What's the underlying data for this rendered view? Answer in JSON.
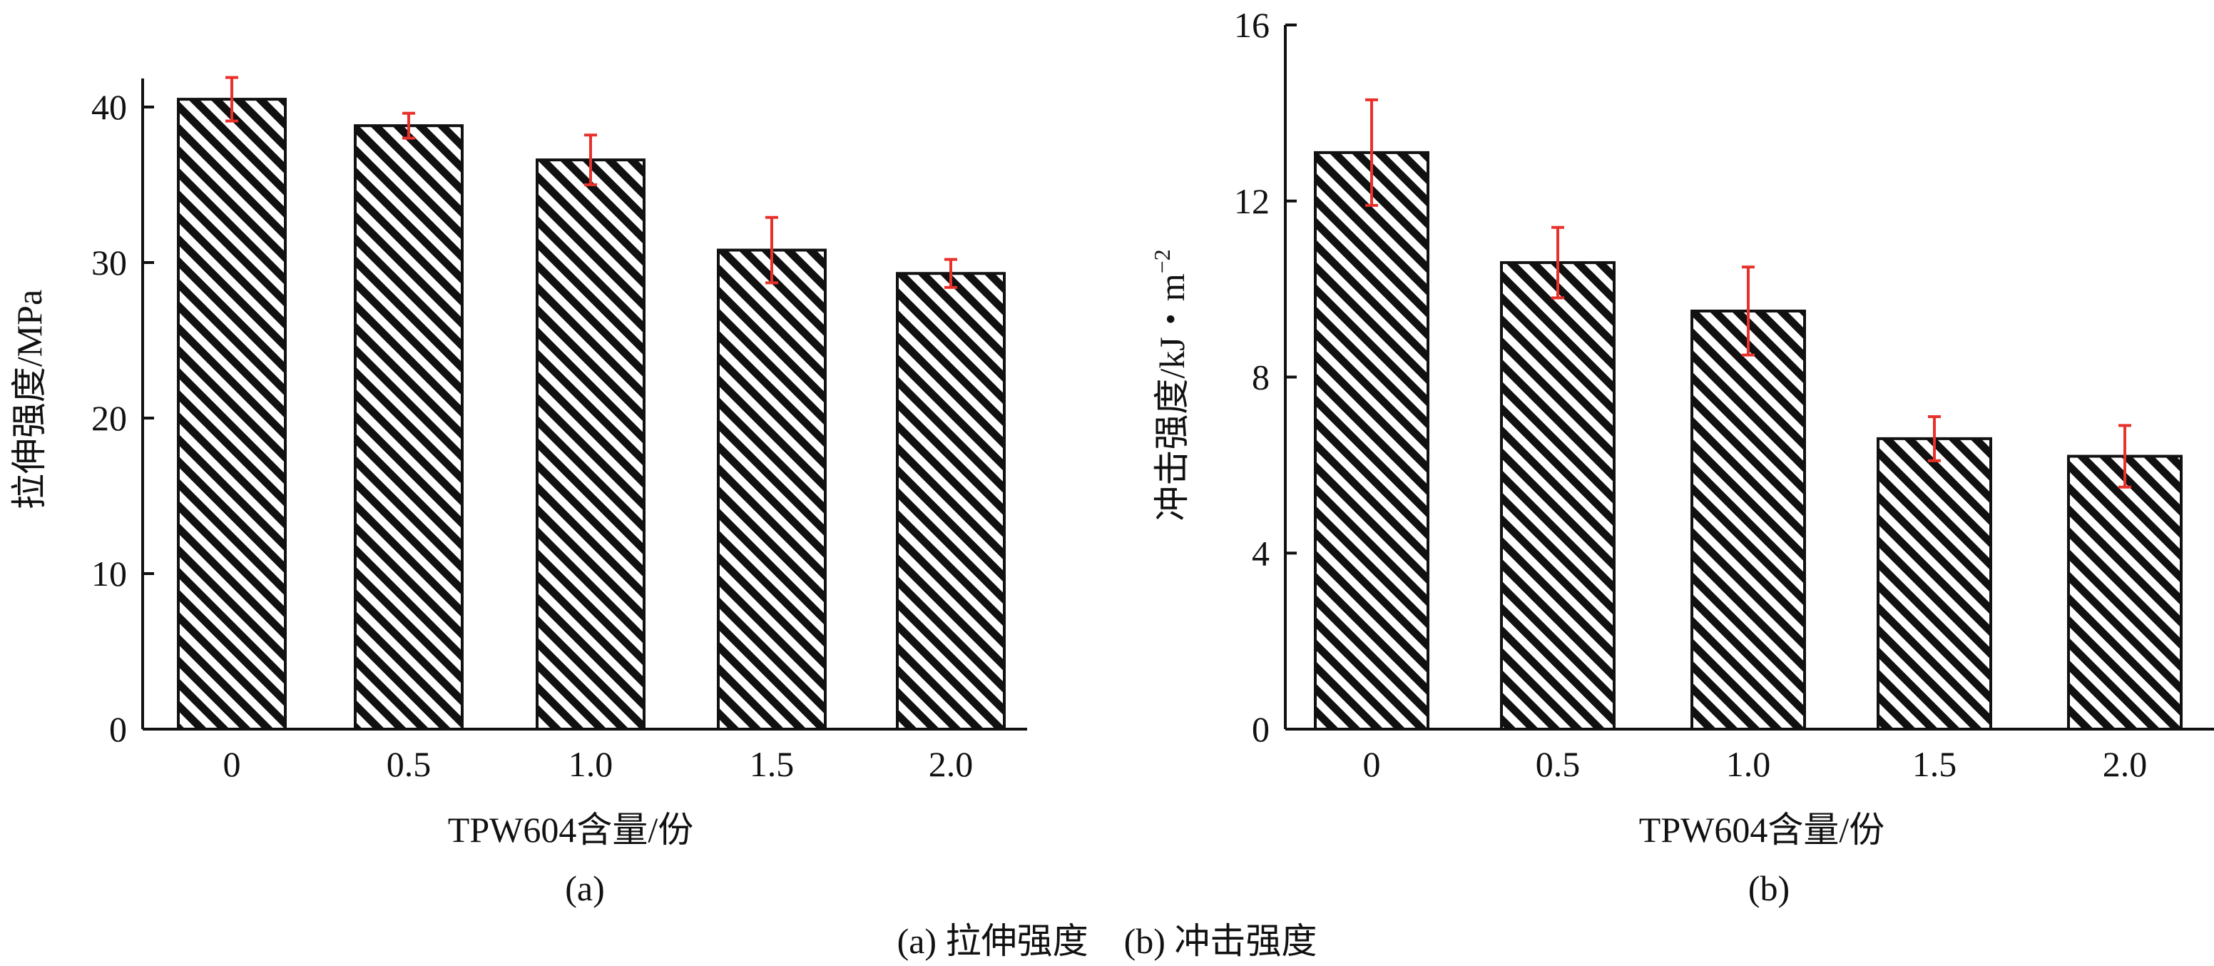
{
  "figure": {
    "caption": "(a) 拉伸强度　(b) 冲击强度"
  },
  "chart_data": [
    {
      "type": "bar",
      "panel_label": "(a)",
      "xlabel": "TPW604含量/份",
      "ylabel": "拉伸强度/MPa",
      "categories": [
        "0",
        "0.5",
        "1.0",
        "1.5",
        "2.0"
      ],
      "values": [
        40.5,
        38.8,
        36.6,
        30.8,
        29.3
      ],
      "errors": [
        1.4,
        0.8,
        1.6,
        2.1,
        0.9
      ],
      "ylim": [
        0,
        40
      ],
      "yticks": [
        "0",
        "10",
        "20",
        "30",
        "40"
      ],
      "bar_fill": "diagonal-hatch",
      "bar_color": "#111111",
      "error_color": "#e8312a",
      "grid": false
    },
    {
      "type": "bar",
      "panel_label": "(b)",
      "xlabel": "TPW604含量/份",
      "ylabel": "冲击强度/kJ・m",
      "ylabel_sup": "−2",
      "categories": [
        "0",
        "0.5",
        "1.0",
        "1.5",
        "2.0"
      ],
      "values": [
        13.1,
        10.6,
        9.5,
        6.6,
        6.2
      ],
      "errors": [
        1.2,
        0.8,
        1.0,
        0.5,
        0.7
      ],
      "ylim": [
        0,
        16
      ],
      "yticks": [
        "0",
        "4",
        "8",
        "12",
        "16"
      ],
      "bar_fill": "diagonal-hatch",
      "bar_color": "#111111",
      "error_color": "#e8312a",
      "grid": false
    }
  ]
}
